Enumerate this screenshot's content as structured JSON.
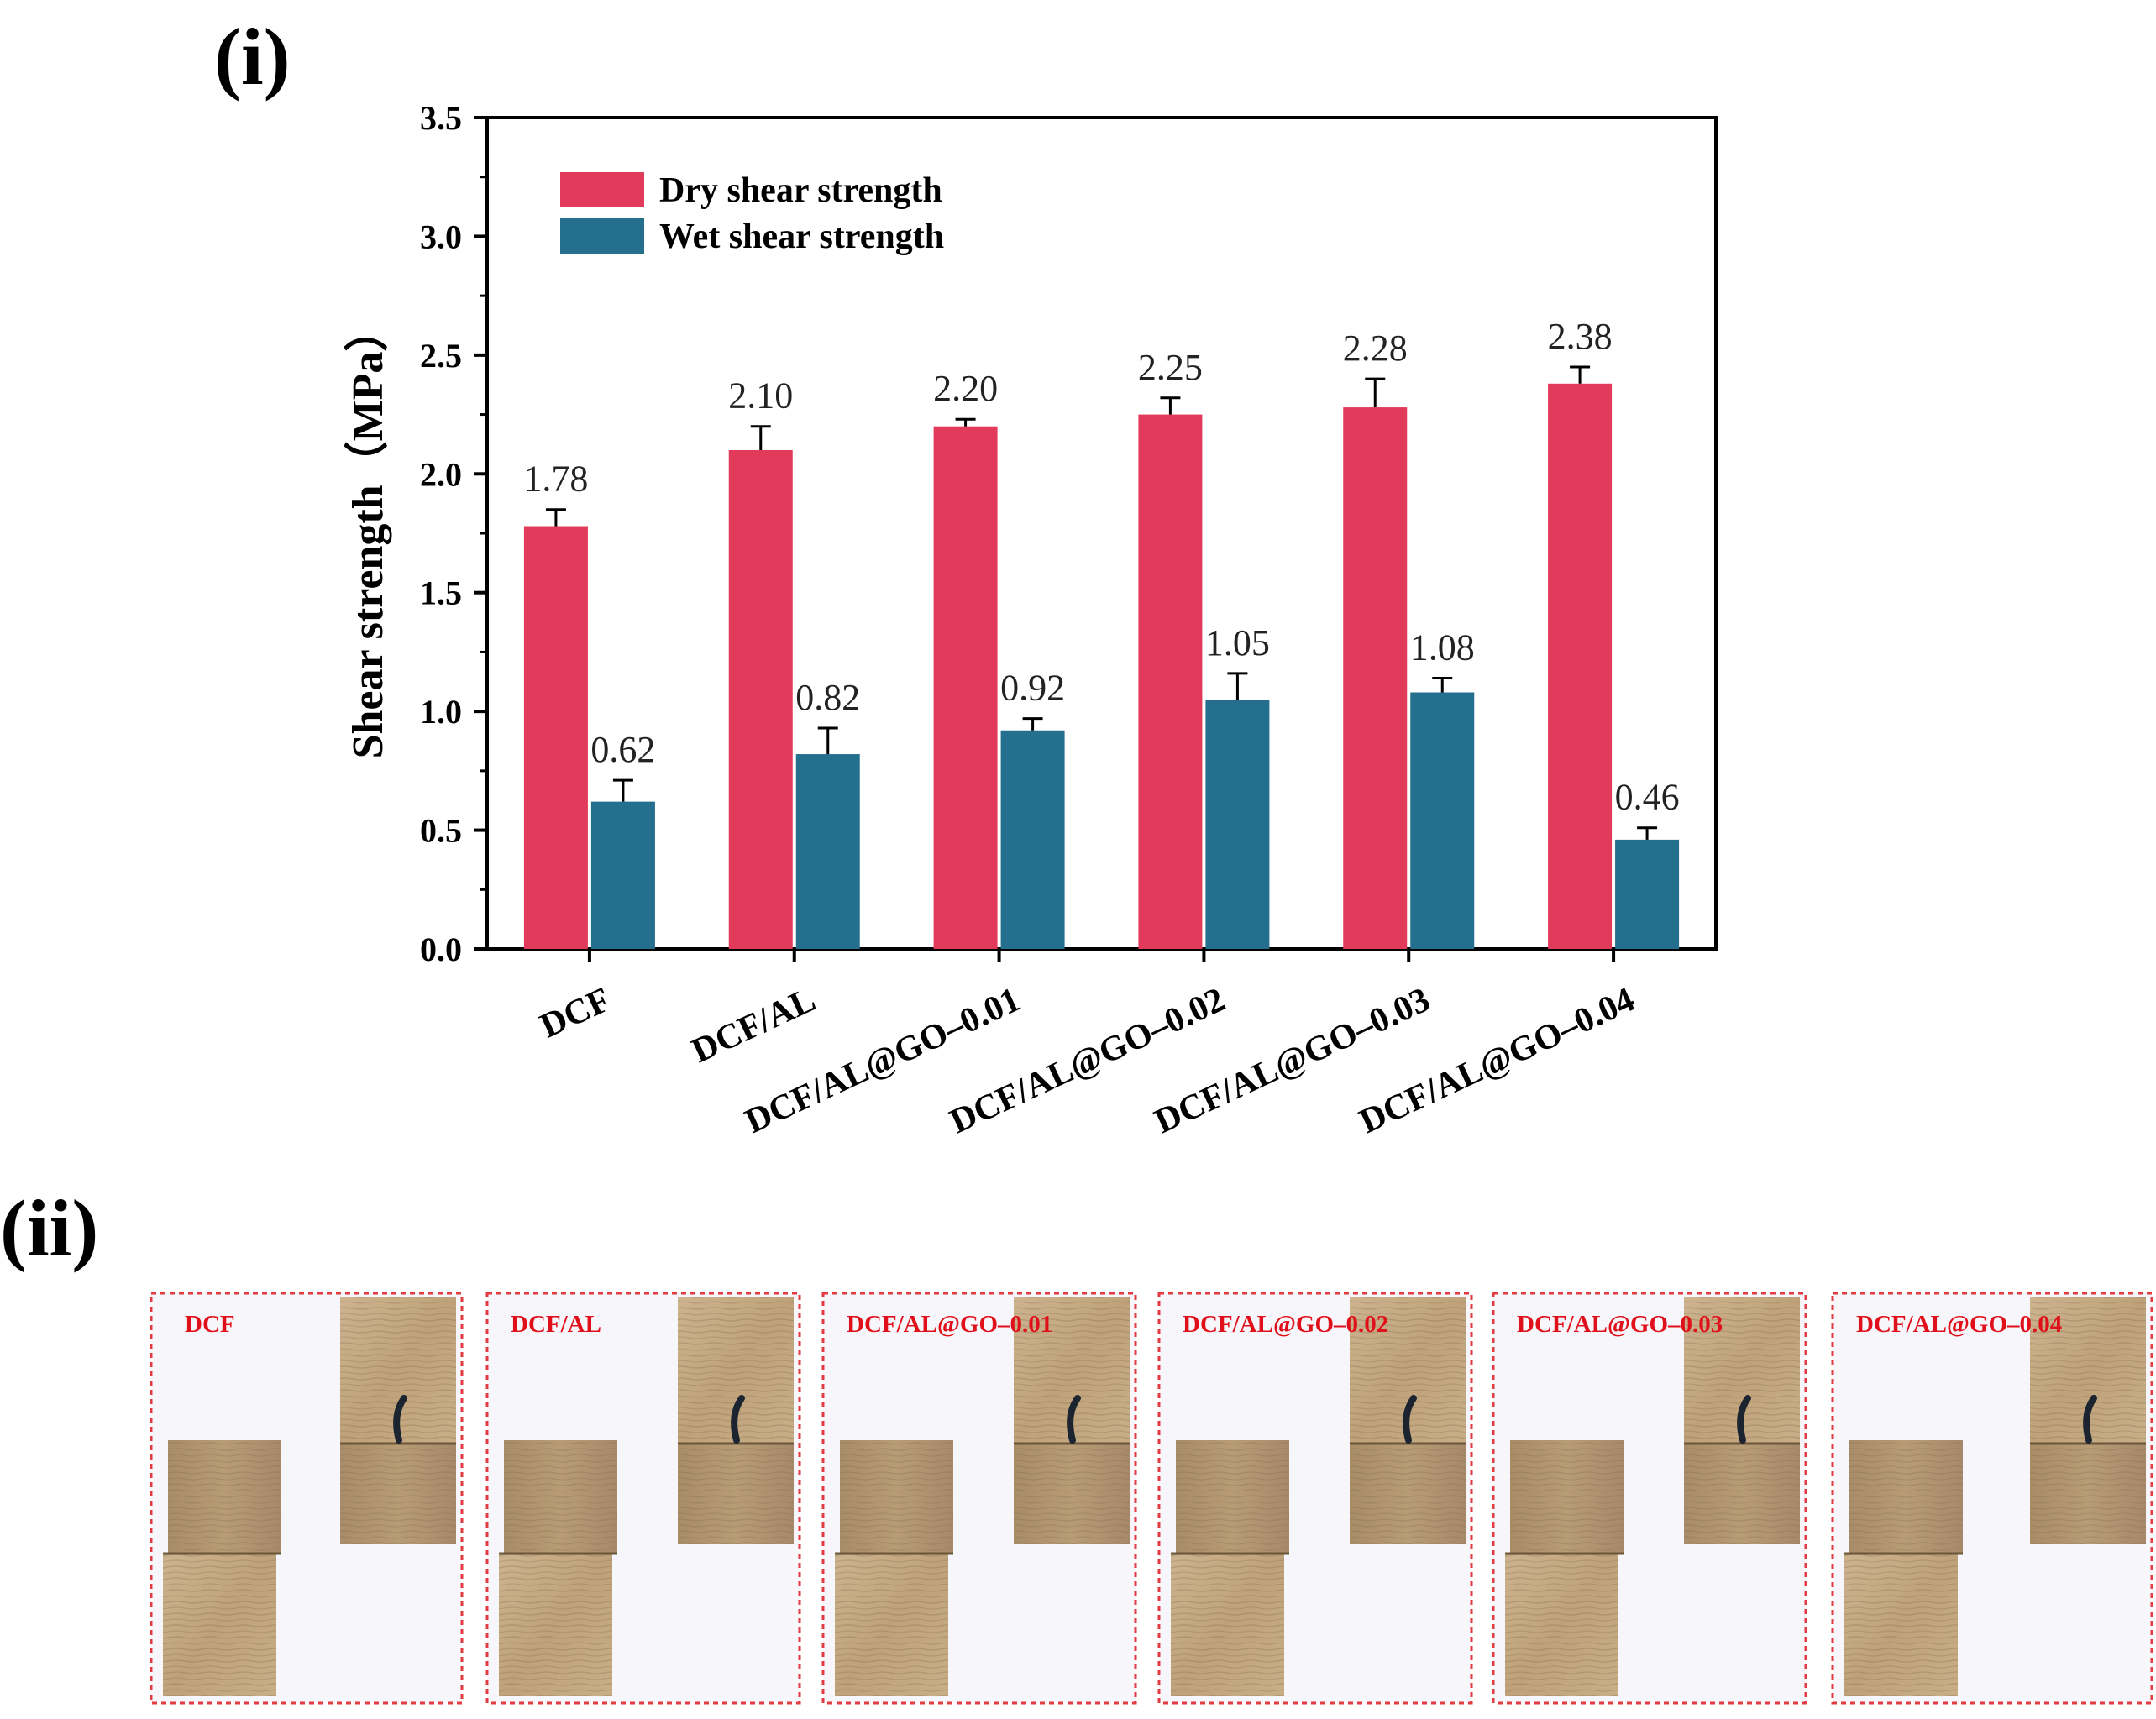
{
  "panels": {
    "chart_label": "(i)",
    "photos_label": "(ii)"
  },
  "chart_data": {
    "type": "bar",
    "title": "",
    "xlabel": "",
    "ylabel": "Shear strength（MPa）",
    "ylim": [
      0,
      3.5
    ],
    "yticks": [
      "0.0",
      "0.5",
      "1.0",
      "1.5",
      "2.0",
      "2.5",
      "3.0",
      "3.5"
    ],
    "categories": [
      "DCF",
      "DCF/AL",
      "DCF/AL@GO–0.01",
      "DCF/AL@GO–0.02",
      "DCF/AL@GO–0.03",
      "DCF/AL@GO–0.04"
    ],
    "legend_position": "top-left",
    "grid": false,
    "series": [
      {
        "name": "Dry shear strength",
        "color": "#e23a5a",
        "values": [
          1.78,
          2.1,
          2.2,
          2.25,
          2.28,
          2.38
        ],
        "errors": [
          0.07,
          0.1,
          0.03,
          0.07,
          0.12,
          0.07
        ],
        "labels": [
          "1.78",
          "2.10",
          "2.20",
          "2.25",
          "2.28",
          "2.38"
        ]
      },
      {
        "name": "Wet shear strength",
        "color": "#246e8e",
        "values": [
          0.62,
          0.82,
          0.92,
          1.05,
          1.08,
          0.46
        ],
        "errors": [
          0.09,
          0.11,
          0.05,
          0.11,
          0.06,
          0.05
        ],
        "labels": [
          "0.62",
          "0.82",
          "0.92",
          "1.05",
          "1.08",
          "0.46"
        ]
      }
    ]
  },
  "photos": [
    {
      "label": "DCF"
    },
    {
      "label": "DCF/AL"
    },
    {
      "label": "DCF/AL@GO–0.01"
    },
    {
      "label": "DCF/AL@GO–0.02"
    },
    {
      "label": "DCF/AL@GO–0.03"
    },
    {
      "label": "DCF/AL@GO–0.04"
    }
  ]
}
